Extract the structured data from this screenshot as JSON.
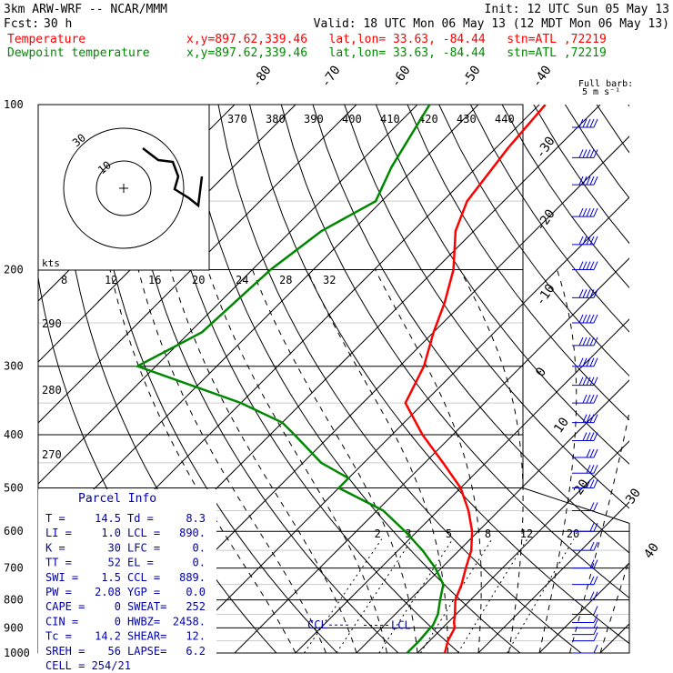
{
  "header": {
    "model": "3km ARW-WRF -- NCAR/MMM",
    "init": "Init: 12 UTC Sun 05 May 13",
    "fcst_label": "Fcst:",
    "fcst_value": "30 h",
    "valid": "Valid: 18 UTC Mon 06 May 13 (12 MDT Mon 06 May 13)"
  },
  "legend": [
    {
      "label": "Temperature",
      "info": "x,y=897.62,339.46   lat,lon= 33.63, -84.44   stn=ATL ,72219",
      "color": "#ff0000"
    },
    {
      "label": "Dewpoint temperature",
      "info": "x,y=897.62,339.46   lat,lon= 33.63, -84.44   stn=ATL ,72219",
      "color": "#008800"
    }
  ],
  "parcel_info": {
    "title": "Parcel Info",
    "rows": [
      [
        "T  =",
        "14.5",
        "Td =",
        "8.3"
      ],
      [
        "LI =",
        "1.0",
        "LCL =",
        "890."
      ],
      [
        "K  =",
        "30",
        "LFC =",
        "0."
      ],
      [
        "TT =",
        "52",
        "EL  =",
        "0."
      ],
      [
        "SWI =",
        "1.5",
        "CCL =",
        "889."
      ],
      [
        "PW =",
        "2.08",
        "YGP =",
        "0.0"
      ],
      [
        "CAPE =",
        "0",
        "SWEAT=",
        "252"
      ],
      [
        "CIN =",
        "0",
        "HWBZ=",
        "2458."
      ],
      [
        "Tc =",
        "14.2",
        "SHEAR=",
        "12."
      ],
      [
        "SREH =",
        "56",
        "LAPSE=",
        "6.2"
      ]
    ],
    "cell": "CELL = 254/21"
  },
  "annotations": {
    "ccl": "CCL",
    "lcl": "LCL",
    "full_barb": "Full barb:",
    "full_barb_units": "5 m s⁻¹",
    "kts": "kts"
  },
  "chart_data": {
    "type": "line",
    "subtype": "skew-T log-P sounding",
    "pressure_levels": [
      100,
      200,
      300,
      400,
      500,
      600,
      700,
      800,
      900,
      1000
    ],
    "pressure_labels": [
      "100",
      "200",
      "300",
      "400",
      "500",
      "600",
      "700",
      "800",
      "900",
      "1000"
    ],
    "ylim": [
      100,
      1000
    ],
    "isotherm_labels": [
      "-80",
      "-70",
      "-60",
      "-50",
      "-40",
      "-30",
      "-20",
      "-10",
      "0",
      "10",
      "20",
      "30",
      "40"
    ],
    "isotherm_values": [
      -80,
      -70,
      -60,
      -50,
      -40,
      -30,
      -20,
      -10,
      0,
      10,
      20,
      30,
      40
    ],
    "theta_labels": [
      "370",
      "380",
      "390",
      "400",
      "410",
      "420",
      "430",
      "440"
    ],
    "theta_values": [
      370,
      380,
      390,
      400,
      410,
      420,
      430,
      440
    ],
    "theta_left_labels": [
      "290",
      "280",
      "270"
    ],
    "theta_left_values": [
      290,
      280,
      270
    ],
    "hodograph_speed_labels": [
      "8",
      "12",
      "16",
      "20",
      "24",
      "28",
      "32"
    ],
    "hodograph_ring_labels": [
      "30",
      "10"
    ],
    "mixing_ratio_labels": [
      "2",
      "3",
      "5",
      "8",
      "12",
      "20"
    ],
    "mixing_ratio_values": [
      2,
      3,
      5,
      8,
      12,
      20
    ],
    "series": [
      {
        "name": "Temperature",
        "color": "#ff0000",
        "points": [
          [
            100,
            -59
          ],
          [
            120,
            -58
          ],
          [
            150,
            -56
          ],
          [
            170,
            -53
          ],
          [
            200,
            -47
          ],
          [
            230,
            -43
          ],
          [
            260,
            -40
          ],
          [
            300,
            -36
          ],
          [
            350,
            -33
          ],
          [
            400,
            -25
          ],
          [
            450,
            -17
          ],
          [
            500,
            -10
          ],
          [
            550,
            -5
          ],
          [
            600,
            -1
          ],
          [
            650,
            2
          ],
          [
            700,
            4
          ],
          [
            750,
            6
          ],
          [
            800,
            7.5
          ],
          [
            850,
            9.8
          ],
          [
            880,
            11
          ],
          [
            900,
            12
          ],
          [
            950,
            13
          ],
          [
            1000,
            14.5
          ]
        ]
      },
      {
        "name": "Dewpoint temperature",
        "color": "#008800",
        "points": [
          [
            100,
            -78
          ],
          [
            130,
            -74
          ],
          [
            150,
            -71
          ],
          [
            170,
            -75
          ],
          [
            200,
            -77
          ],
          [
            260,
            -78
          ],
          [
            300,
            -83
          ],
          [
            350,
            -60
          ],
          [
            380,
            -50
          ],
          [
            400,
            -46
          ],
          [
            450,
            -37
          ],
          [
            480,
            -30
          ],
          [
            500,
            -30
          ],
          [
            550,
            -19
          ],
          [
            600,
            -12
          ],
          [
            650,
            -6
          ],
          [
            700,
            -1
          ],
          [
            750,
            3
          ],
          [
            800,
            5
          ],
          [
            850,
            7
          ],
          [
            890,
            8
          ],
          [
            900,
            8
          ],
          [
            950,
            8.3
          ],
          [
            1000,
            8.3
          ]
        ]
      }
    ],
    "parcel_path": {
      "name": "parcel",
      "points": [
        [
          1000,
          14.5
        ],
        [
          900,
          12
        ],
        [
          890,
          11.8
        ]
      ]
    },
    "wind_barbs": {
      "units": "m/s",
      "levels": [
        110,
        125,
        140,
        160,
        180,
        200,
        225,
        250,
        275,
        300,
        325,
        350,
        380,
        410,
        440,
        470,
        500,
        550,
        600,
        650,
        700,
        750,
        800,
        850,
        880,
        900,
        925,
        950,
        1000
      ],
      "speed": [
        25,
        25,
        25,
        25,
        25,
        25,
        25,
        25,
        25,
        25,
        25,
        20,
        20,
        20,
        15,
        15,
        15,
        10,
        10,
        10,
        10,
        10,
        10,
        5,
        5,
        5,
        5,
        5,
        5
      ],
      "direction": [
        270,
        270,
        270,
        270,
        270,
        270,
        270,
        270,
        270,
        270,
        270,
        270,
        270,
        270,
        270,
        270,
        270,
        270,
        270,
        270,
        270,
        270,
        270,
        270,
        270,
        270,
        270,
        270,
        270
      ]
    },
    "hodograph_trace": [
      [
        0,
        0
      ],
      [
        10,
        14
      ],
      [
        14,
        20
      ],
      [
        12,
        24
      ],
      [
        8,
        26
      ],
      [
        10,
        30
      ],
      [
        14,
        38
      ],
      [
        16,
        44
      ]
    ]
  }
}
